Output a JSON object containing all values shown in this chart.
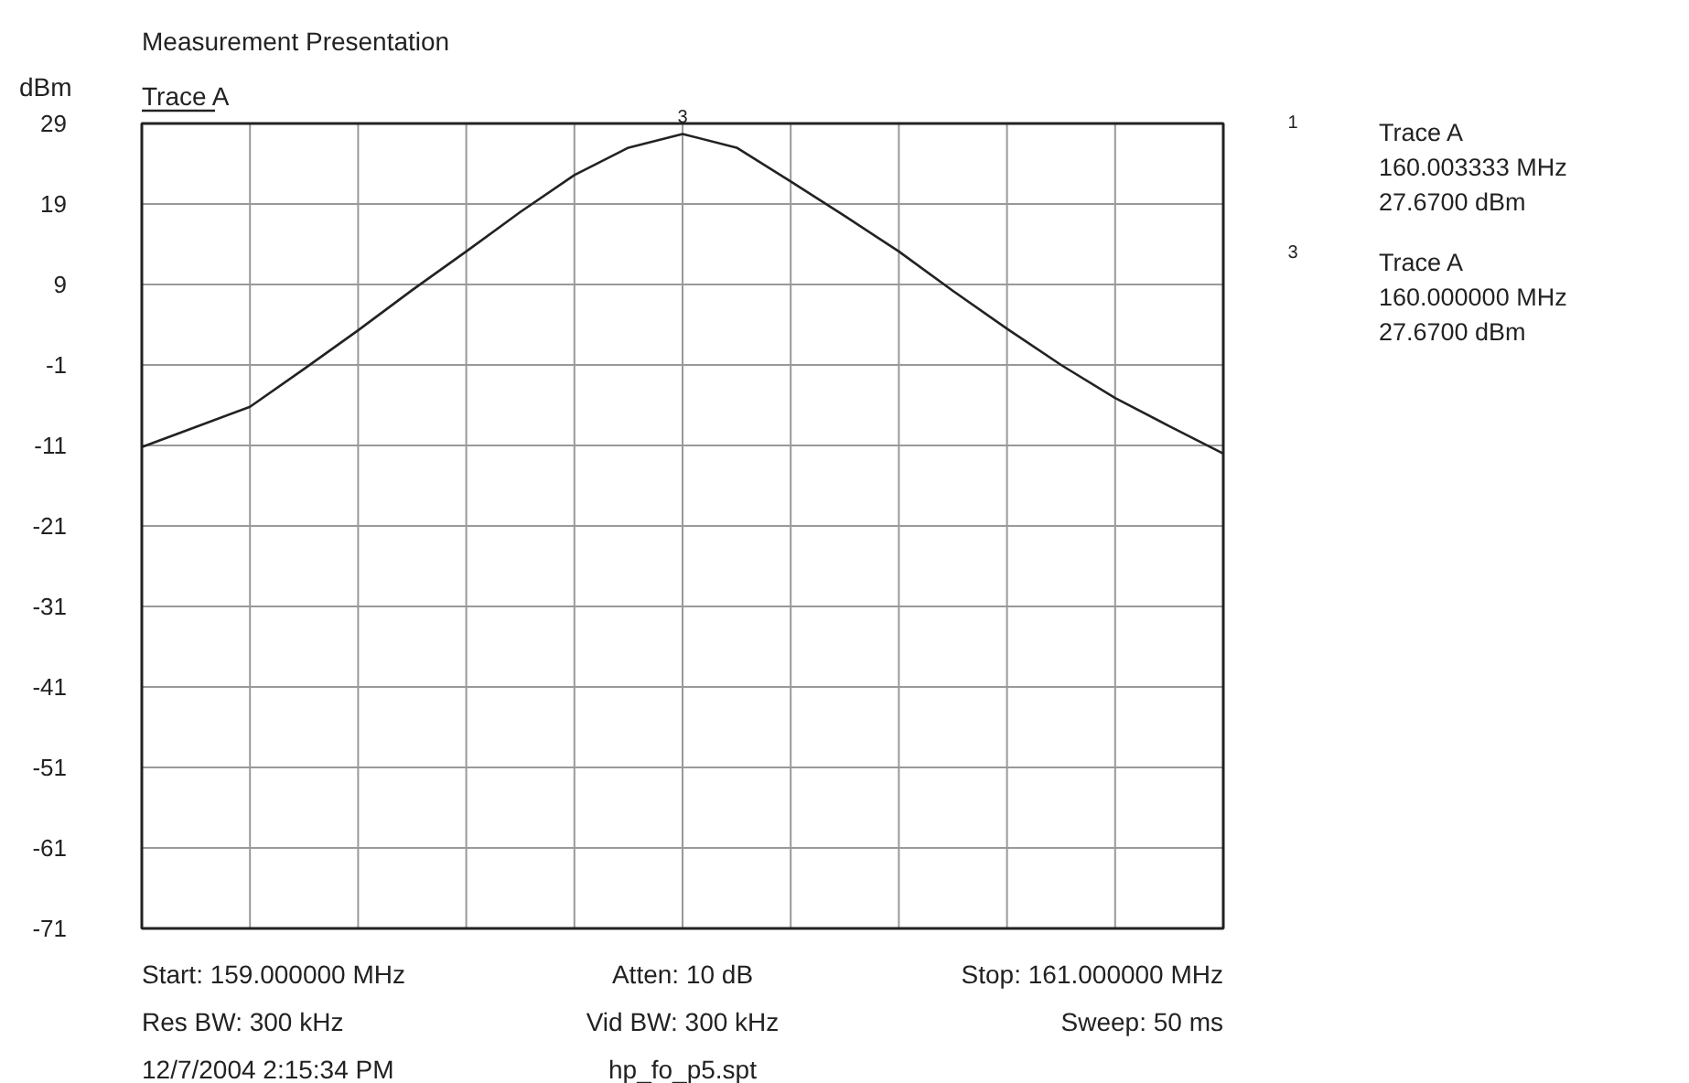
{
  "chart_data": {
    "type": "line",
    "title": "Measurement Presentation",
    "ylabel": "dBm",
    "categories": [
      null,
      null,
      null,
      null,
      null,
      null,
      null,
      null,
      null,
      null,
      null,
      null,
      null,
      null,
      null,
      null,
      null,
      null,
      null,
      null,
      null
    ],
    "ylim": [
      -71,
      29
    ],
    "yticks": [
      29,
      19,
      9,
      -1,
      -11,
      -21,
      -31,
      -41,
      -51,
      -61,
      -71
    ],
    "tick_labels": "y",
    "grid": true,
    "legend": "top left",
    "series": [
      {
        "name": "Trace A",
        "color": "#222222",
        "values": [
          -11.2,
          -8.7,
          -6.2,
          -1.5,
          3.3,
          8.3,
          13.1,
          18,
          22.6,
          26,
          27.7,
          26,
          21.8,
          17.5,
          13.1,
          8.2,
          3.5,
          -1,
          -5.1,
          -8.6,
          -12
        ]
      }
    ],
    "annotations": [
      "Start: 159.000000 MHz",
      "Atten: 10 dB",
      "Stop: 161.000000 MHz",
      "Res BW: 300 kHz",
      "Vid BW: 300 kHz",
      "Sweep: 50 ms",
      "12/7/2004 2:15:34 PM",
      "hp_fo_p5.spt",
      "1",
      "Trace A",
      "160.003333 MHz",
      "27.6700 dBm",
      "3",
      "Trace A",
      "160.000000 MHz",
      "27.6700 dBm",
      {
        "text": "3",
        "y": 27.7
      }
    ]
  }
}
